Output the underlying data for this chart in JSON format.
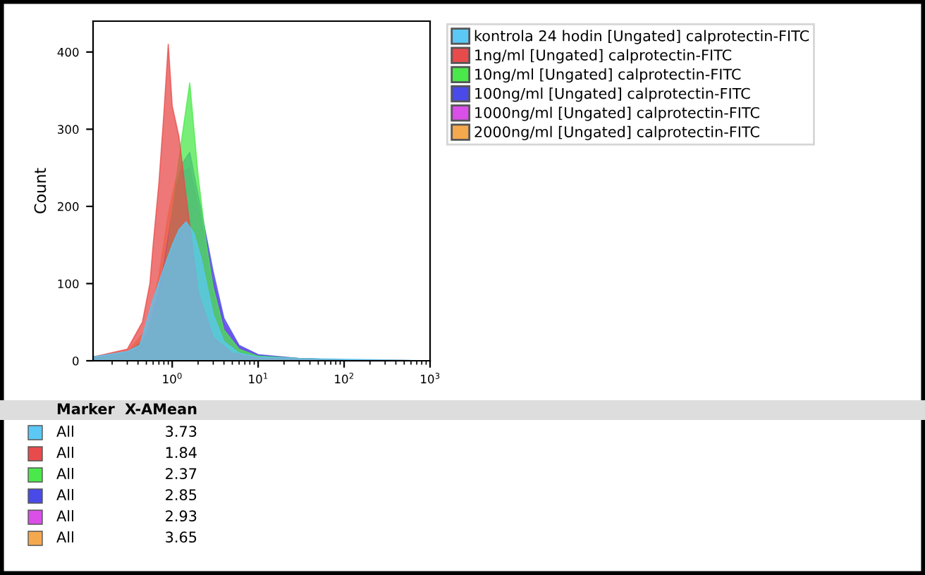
{
  "chart_data": {
    "type": "area",
    "ylabel": "Count",
    "log": "x",
    "xlim": [
      0.12,
      1000
    ],
    "ylim": [
      0,
      440
    ],
    "xticks": [
      {
        "value": 1,
        "label": "10$^{0}$"
      },
      {
        "value": 10,
        "label": "10$^{1}$"
      },
      {
        "value": 100,
        "label": "10$^{2}$"
      },
      {
        "value": 1000,
        "label": "10$^{3}$"
      }
    ],
    "yticks": [
      0,
      100,
      200,
      300,
      400
    ],
    "grid": false,
    "legend": "top right",
    "series": [
      {
        "name": "2000ng/ml [Ungated] calprotectin-FITC",
        "color": "#f5a94e",
        "x": [
          0.12,
          0.3,
          0.5,
          0.7,
          0.9,
          1.1,
          1.3,
          1.6,
          2,
          2.5,
          3,
          4,
          6,
          10,
          30,
          100,
          1000
        ],
        "values": [
          5,
          12,
          40,
          110,
          190,
          235,
          225,
          190,
          140,
          90,
          55,
          25,
          10,
          5,
          3,
          1,
          0
        ]
      },
      {
        "name": "1000ng/ml [Ungated] calprotectin-FITC",
        "color": "#d94fe8",
        "x": [
          0.12,
          0.3,
          0.5,
          0.7,
          0.9,
          1.1,
          1.3,
          1.6,
          2,
          2.5,
          3,
          4,
          6,
          10,
          30,
          100,
          1000
        ],
        "values": [
          5,
          10,
          30,
          80,
          150,
          210,
          245,
          250,
          200,
          150,
          105,
          50,
          18,
          7,
          3,
          1,
          0
        ]
      },
      {
        "name": "100ng/ml [Ungated] calprotectin-FITC",
        "color": "#4a4ae8",
        "x": [
          0.12,
          0.3,
          0.5,
          0.7,
          0.9,
          1.1,
          1.3,
          1.6,
          2,
          2.5,
          3,
          4,
          6,
          10,
          30,
          100,
          1000
        ],
        "values": [
          5,
          10,
          30,
          85,
          160,
          220,
          255,
          270,
          215,
          160,
          115,
          55,
          20,
          8,
          3,
          1,
          0
        ]
      },
      {
        "name": "10ng/ml [Ungated] calprotectin-FITC",
        "color": "#4be84b",
        "x": [
          0.12,
          0.3,
          0.5,
          0.7,
          0.9,
          1.1,
          1.3,
          1.6,
          2,
          2.5,
          3,
          4,
          6,
          10,
          30,
          100,
          1000
        ],
        "values": [
          5,
          10,
          30,
          80,
          150,
          230,
          290,
          360,
          240,
          150,
          95,
          40,
          15,
          6,
          3,
          1,
          0
        ]
      },
      {
        "name": "1ng/ml [Ungated] calprotectin-FITC",
        "color": "#e84b4b",
        "x": [
          0.12,
          0.3,
          0.45,
          0.55,
          0.6,
          0.7,
          0.8,
          0.9,
          1.0,
          1.2,
          1.5,
          2,
          3,
          5,
          10,
          100,
          1000
        ],
        "values": [
          5,
          15,
          50,
          100,
          150,
          230,
          320,
          410,
          330,
          290,
          200,
          90,
          30,
          10,
          4,
          1,
          0
        ]
      },
      {
        "name": "kontrola 24 hodin [Ungated] calprotectin-FITC",
        "color": "#5bc8f5",
        "x": [
          0.12,
          0.3,
          0.42,
          0.6,
          0.8,
          1.0,
          1.2,
          1.45,
          1.8,
          2.2,
          3,
          4,
          6,
          10,
          30,
          100,
          1000
        ],
        "values": [
          5,
          12,
          20,
          80,
          120,
          150,
          170,
          180,
          165,
          130,
          60,
          25,
          10,
          5,
          3,
          2,
          0
        ]
      }
    ],
    "annotations": [
      "Marker",
      "X-AMean",
      "All",
      "3.73",
      "All",
      "1.84",
      "All",
      "2.37",
      "All",
      "2.85",
      "All",
      "2.93",
      "All",
      "3.65"
    ]
  }
}
